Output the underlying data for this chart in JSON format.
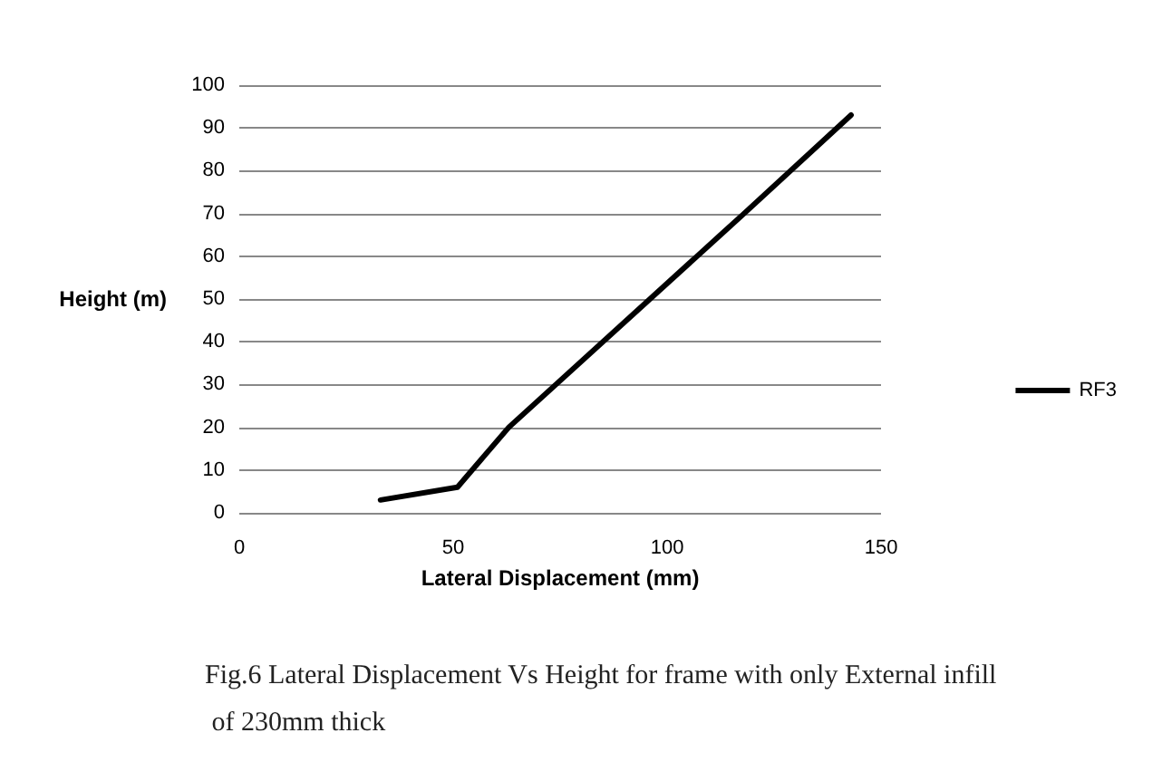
{
  "chart_data": {
    "type": "line",
    "title": "Fig.6 Lateral Displacement Vs Height for frame with only External infill of 230mm thick",
    "xlabel": "Lateral Displacement (mm)",
    "ylabel": "Height (m)",
    "x": [
      33,
      51,
      57,
      63,
      96,
      118,
      143
    ],
    "series": [
      {
        "name": "RF3",
        "color": "#000000",
        "values": [
          3,
          6,
          13,
          20,
          50,
          70,
          93
        ]
      }
    ],
    "xlim": [
      0,
      150
    ],
    "xticks": [
      0,
      50,
      100,
      150
    ],
    "ylim": [
      0,
      100
    ],
    "yticks": [
      0,
      10,
      20,
      30,
      40,
      50,
      60,
      70,
      80,
      90,
      100
    ],
    "grid": "y",
    "legend": "right",
    "marker": "none",
    "line_style": "solid"
  }
}
